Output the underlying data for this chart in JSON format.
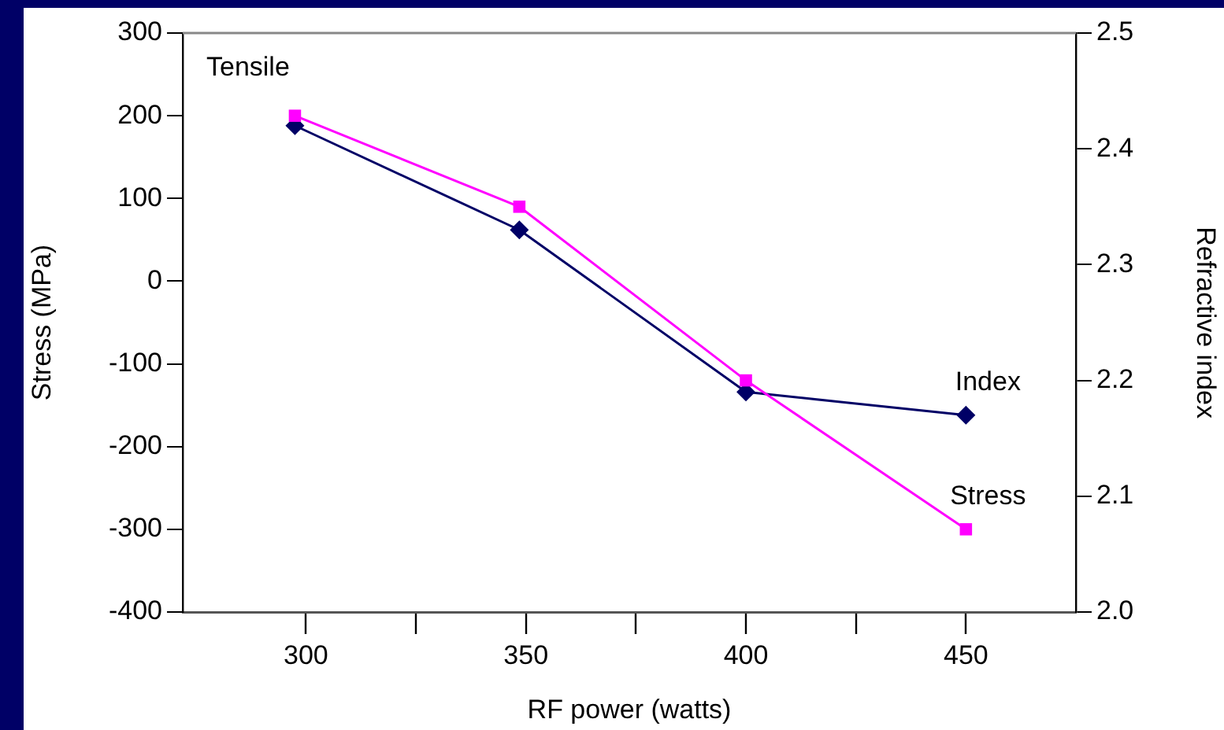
{
  "chart_data": {
    "type": "line",
    "xlabel": "RF power (watts)",
    "ylabel": "Stress (MPa)",
    "y2label": "Refractive index",
    "x": [
      297.5,
      348.5,
      400,
      450
    ],
    "xlim": [
      272,
      475
    ],
    "xticks": [
      300,
      {
        "value": 325,
        "label": null
      },
      350,
      {
        "value": 375,
        "label": null
      },
      400,
      {
        "value": 425,
        "label": null
      },
      450
    ],
    "ylim": [
      -400,
      300
    ],
    "yticks": [
      -400,
      -300,
      -200,
      -100,
      0,
      100,
      200,
      300
    ],
    "y2lim": [
      2.0,
      2.5
    ],
    "y2ticks": [
      {
        "value": 2.0,
        "label": "2.0"
      },
      2.1,
      2.2,
      2.3,
      2.4,
      2.5
    ],
    "series": [
      {
        "name": "Stress",
        "color": "#ff00ff",
        "values": [
          200,
          90,
          -120,
          -300
        ],
        "marker": "square"
      },
      {
        "name": "Index",
        "color": "#000066",
        "values": [
          2.42,
          2.33,
          2.19,
          2.17
        ],
        "axis": "y2",
        "marker": "diamond"
      }
    ],
    "annotations": [
      "Tensile"
    ],
    "grid": false,
    "legend": false,
    "line_style": "solid"
  }
}
